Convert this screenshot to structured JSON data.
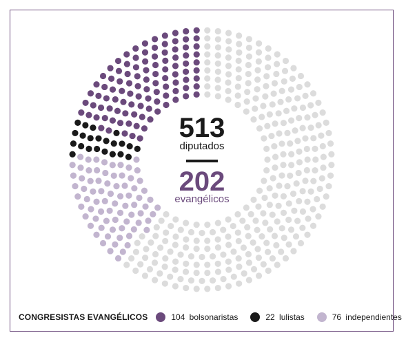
{
  "chart_data": {
    "type": "parliament",
    "total": {
      "value": "513",
      "label": "diputados"
    },
    "highlight": {
      "value": "202",
      "label": "evangélicos"
    },
    "legend_title": "CONGRESISTAS EVANGÉLICOS",
    "groups": [
      {
        "count": 104,
        "label": "104  bolsonaristas",
        "color": "#6b4a7c"
      },
      {
        "count": 22,
        "label": "22  lulistas",
        "color": "#1a1a1a"
      },
      {
        "count": 76,
        "label": "76  independientes",
        "color": "#c2b5cf"
      }
    ],
    "rest": {
      "count": 311,
      "color": "#dcdcdc"
    },
    "start_angle_deg": 0,
    "direction": "counterclockwise"
  }
}
